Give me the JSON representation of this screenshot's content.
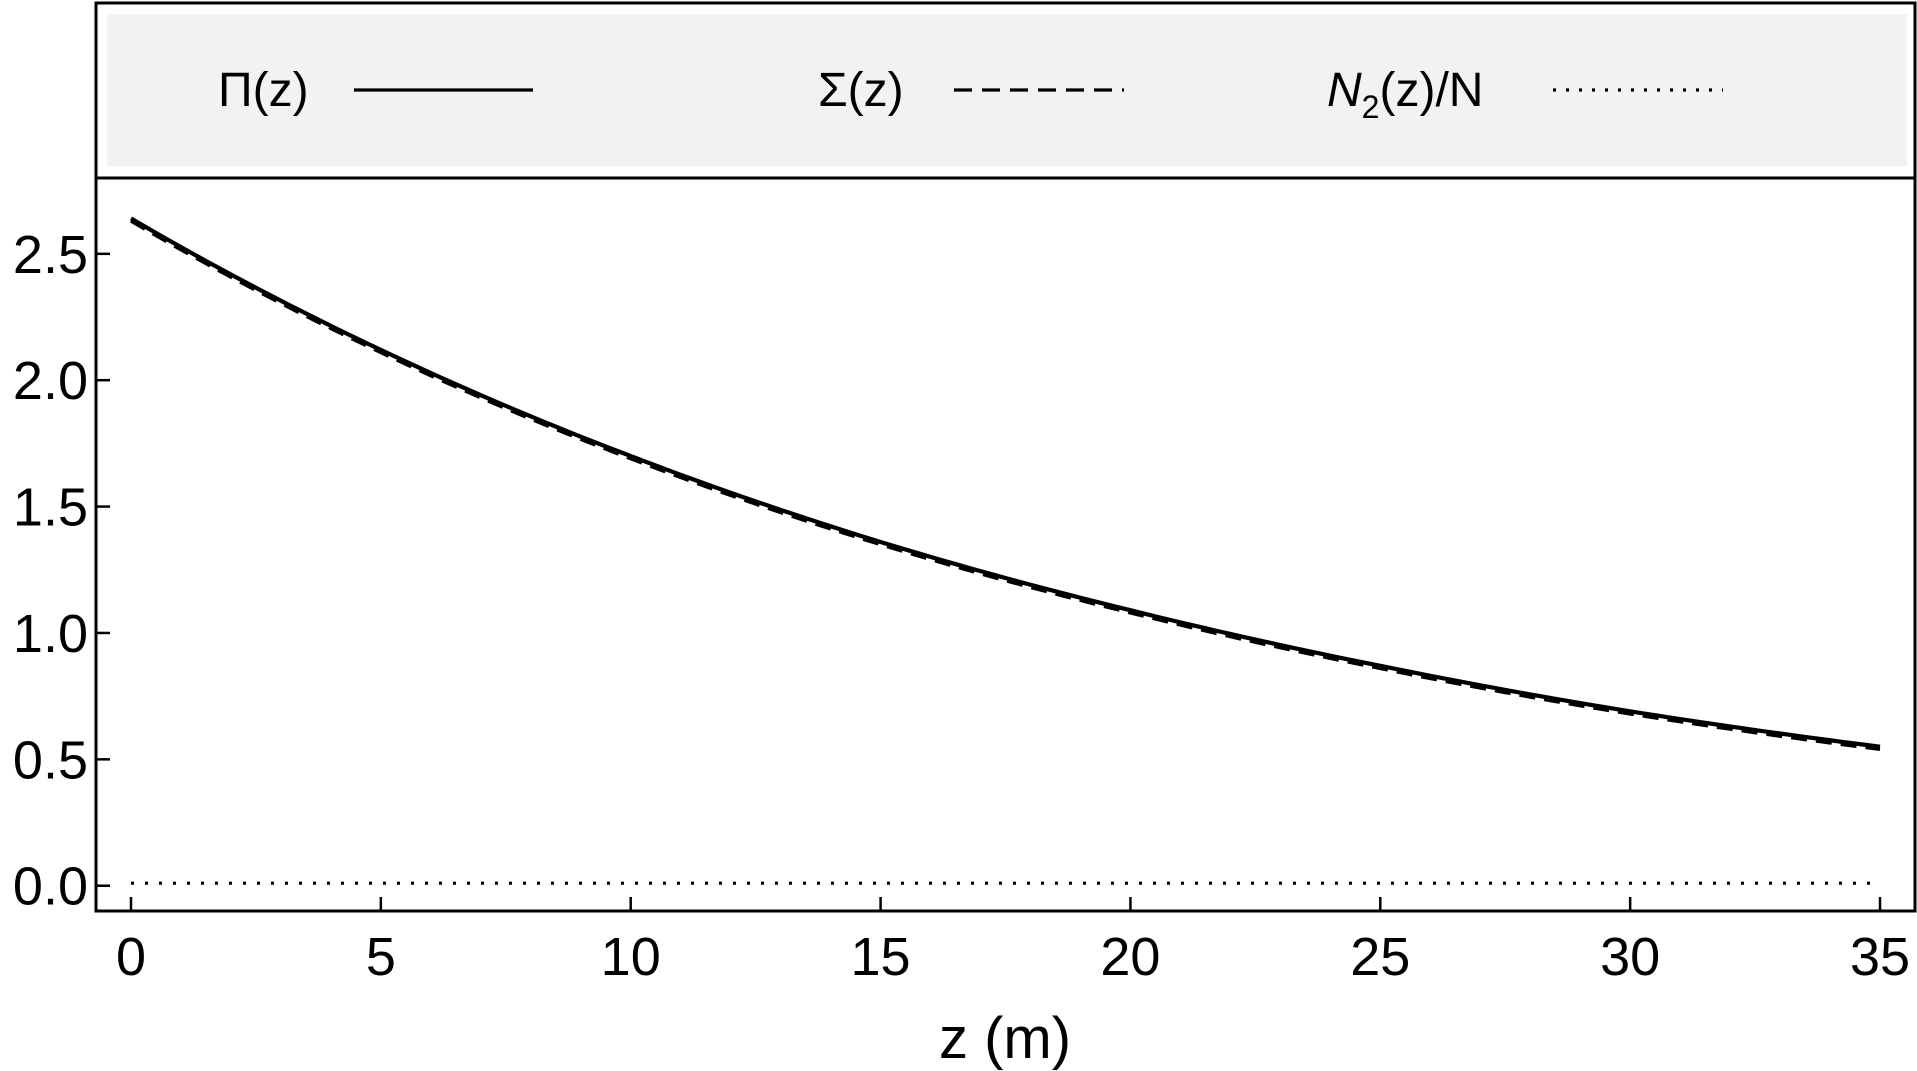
{
  "chart_data": {
    "type": "line",
    "title": "",
    "xlabel": "z (m)",
    "ylabel": "",
    "xlim": [
      -0.7,
      35.7
    ],
    "ylim": [
      -0.1,
      2.8
    ],
    "x_ticks": [
      0,
      5,
      10,
      15,
      20,
      25,
      30,
      35
    ],
    "x_tick_labels": [
      "0",
      "5",
      "10",
      "15",
      "20",
      "25",
      "30",
      "35"
    ],
    "y_ticks": [
      0.0,
      0.5,
      1.0,
      1.5,
      2.0,
      2.5
    ],
    "y_tick_labels": [
      "0.0",
      "0.5",
      "1.0",
      "1.5",
      "2.0",
      "2.5"
    ],
    "grid": false,
    "legend_position": "top",
    "series": [
      {
        "name": "Π(z)",
        "style": "solid",
        "color": "#000000",
        "x": [
          0,
          5,
          10,
          15,
          20,
          25,
          30,
          35
        ],
        "values": [
          2.64,
          2.12,
          1.7,
          1.36,
          1.09,
          0.87,
          0.69,
          0.55
        ]
      },
      {
        "name": "Σ(z)",
        "style": "dashed",
        "color": "#000000",
        "x": [
          0,
          5,
          10,
          15,
          20,
          25,
          30,
          35
        ],
        "values": [
          2.63,
          2.11,
          1.69,
          1.35,
          1.08,
          0.86,
          0.68,
          0.54
        ]
      },
      {
        "name": "N2(z)/N",
        "style": "dotted",
        "color": "#000000",
        "x": [
          0,
          5,
          10,
          15,
          20,
          25,
          30,
          35
        ],
        "values": [
          0.01,
          0.01,
          0.01,
          0.01,
          0.01,
          0.01,
          0.01,
          0.01
        ]
      }
    ]
  },
  "legend": {
    "items": [
      {
        "label": "Π(z)"
      },
      {
        "label": "Σ(z)"
      },
      {
        "label_main": "N",
        "label_sub": "2",
        "label_rest": "(z)/N"
      }
    ]
  },
  "colors": {
    "legend_background": "#f2f2f2",
    "frame": "#000000",
    "line": "#000000"
  }
}
